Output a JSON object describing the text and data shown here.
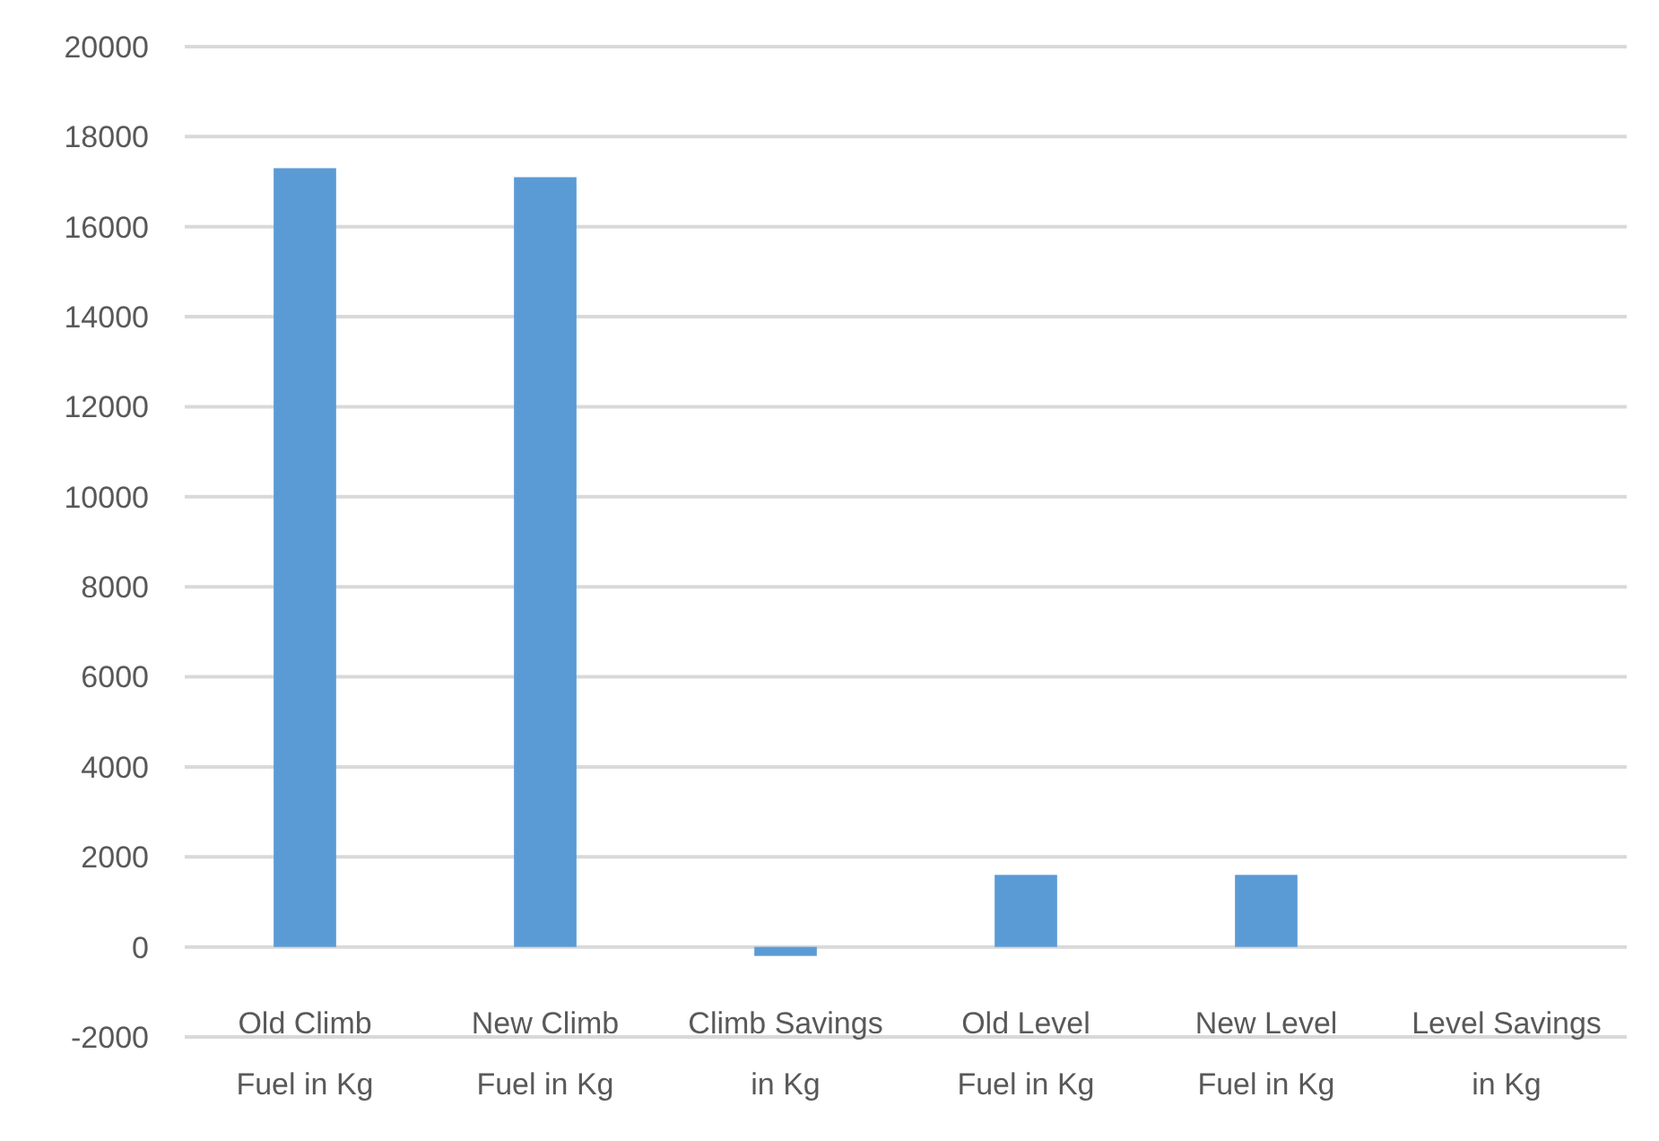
{
  "chart_data": {
    "type": "bar",
    "categories": [
      "Old Climb Fuel in Kg",
      "New Climb Fuel in Kg",
      "Climb Savings in Kg",
      "Old Level Fuel in Kg",
      "New Level Fuel in Kg",
      "Level Savings in Kg"
    ],
    "values": [
      17300,
      17100,
      -200,
      1600,
      1600,
      0
    ],
    "color": "#5b9bd5",
    "ylim": [
      -2000,
      20000
    ],
    "yticks": [
      -2000,
      0,
      2000,
      4000,
      6000,
      8000,
      10000,
      12000,
      14000,
      16000,
      18000,
      20000
    ],
    "grid": "y"
  }
}
